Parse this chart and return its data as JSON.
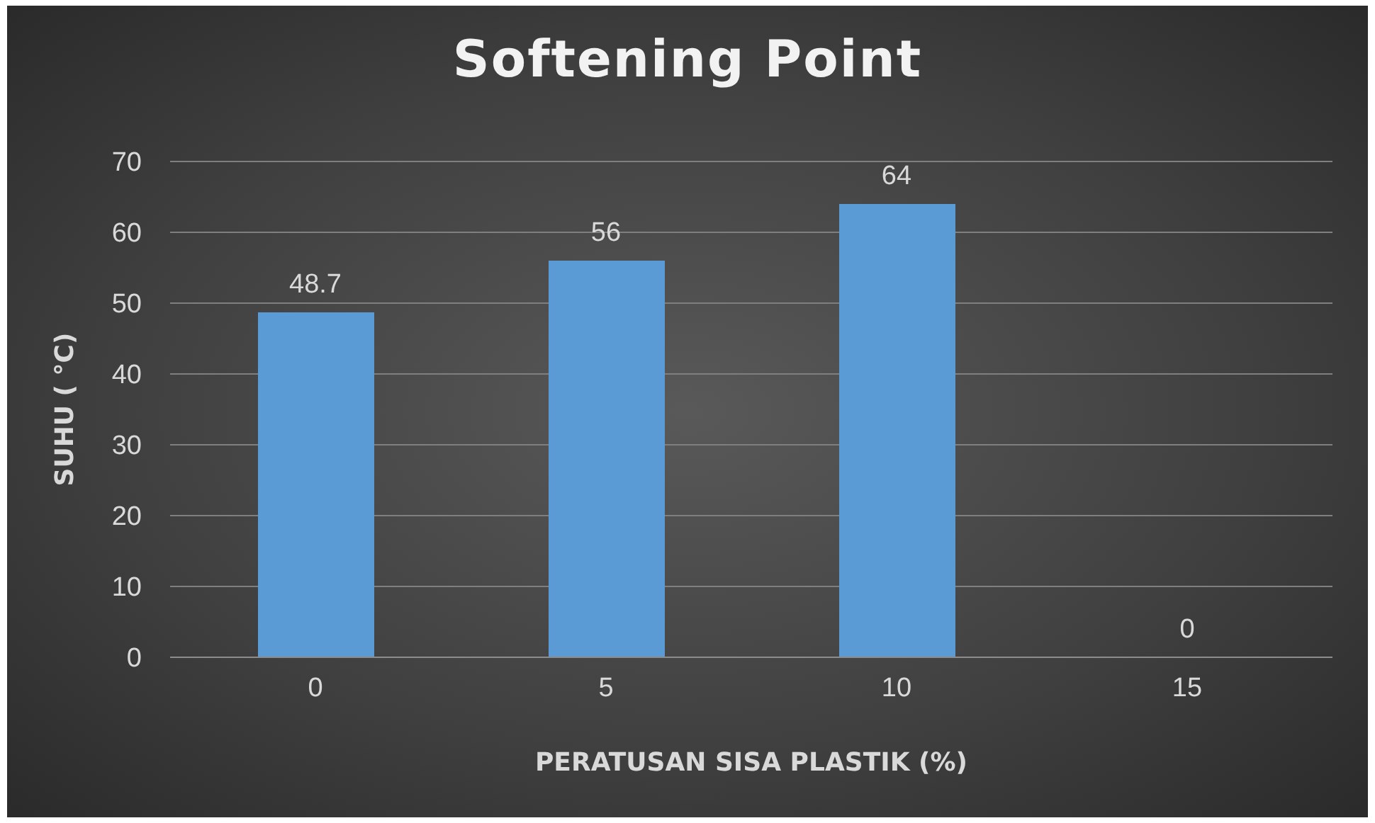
{
  "chart_data": {
    "type": "bar",
    "title": "Softening Point",
    "xlabel": "PERATUSAN SISA PLASTIK (%)",
    "ylabel": "SUHU ( °C)",
    "categories": [
      "0",
      "5",
      "10",
      "15"
    ],
    "values": [
      48.7,
      56,
      64,
      0
    ],
    "color": "#5b9bd5",
    "ylim": [
      0,
      70
    ],
    "yticks": [
      0,
      10,
      20,
      30,
      40,
      50,
      60,
      70
    ],
    "grid": "y",
    "data_labels": true,
    "legend": false
  }
}
